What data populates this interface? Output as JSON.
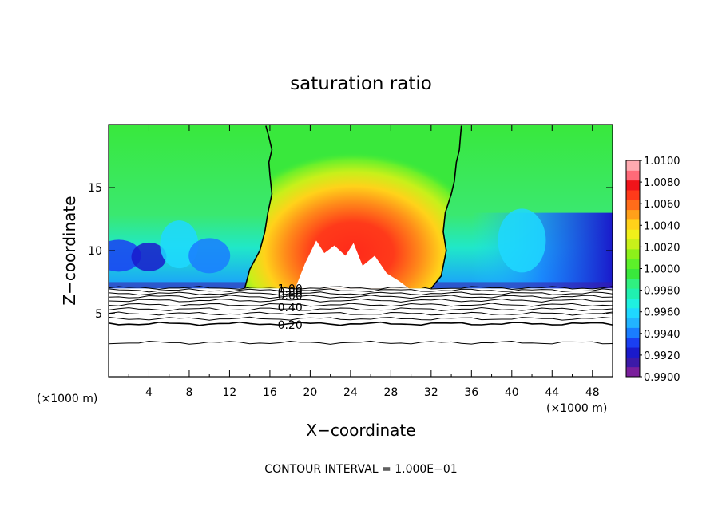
{
  "chart_data": {
    "type": "heatmap",
    "title": "saturation ratio",
    "xlabel": "X−coordinate",
    "ylabel": "Z−coordinate",
    "x_unit": "(×1000 m)",
    "x_unit_right": "(×1000 m)",
    "xlim": [
      0,
      50
    ],
    "ylim": [
      0,
      20
    ],
    "x_ticks": [
      "4",
      "8",
      "12",
      "16",
      "20",
      "24",
      "28",
      "32",
      "36",
      "40",
      "44",
      "48"
    ],
    "y_ticks": [
      "5",
      "10",
      "15"
    ],
    "colorbar": {
      "range": [
        0.99,
        1.01
      ],
      "ticks": [
        "0.9900",
        "0.9920",
        "0.9940",
        "0.9960",
        "0.9980",
        "1.0000",
        "1.0020",
        "1.0040",
        "1.0060",
        "1.0080",
        "1.0100"
      ],
      "colors": [
        "#7a1f9c",
        "#3c1aa8",
        "#1a1acb",
        "#1a3ff2",
        "#1a7dff",
        "#22b4ff",
        "#1fd8ff",
        "#1ff0e0",
        "#20f0b0",
        "#30f080",
        "#39e83c",
        "#5cf02a",
        "#8cf01a",
        "#c8f01a",
        "#f0f01a",
        "#ffd21a",
        "#ffa01a",
        "#ff6c1a",
        "#ff3a1a",
        "#f0141a",
        "#ff6a78",
        "#ffaab0"
      ]
    },
    "contour_interval_label": "CONTOUR INTERVAL = 1.000E−01",
    "contour_labels": [
      "1.00",
      "0.80",
      "0.60",
      "0.40",
      "0.20"
    ],
    "boundary_z": 7.0,
    "saturation_contour": {
      "left_x": [
        13.5,
        14,
        15,
        15.5,
        15.8,
        16.2,
        16.0,
        15.9,
        16.2,
        15.9,
        15.6
      ],
      "left_z": [
        7.0,
        8.5,
        10.0,
        11.5,
        13.0,
        14.5,
        16.0,
        17.0,
        18.0,
        19.0,
        19.9
      ],
      "right_x": [
        32.0,
        33.0,
        33.5,
        33.2,
        33.4,
        34.0,
        34.3,
        34.5,
        34.8,
        34.9,
        35.0
      ],
      "right_z": [
        7.0,
        8.0,
        10.0,
        11.5,
        13.0,
        14.5,
        15.5,
        17.0,
        18.0,
        19.0,
        19.9
      ]
    },
    "lower_contours_z": [
      7.05,
      6.85,
      6.6,
      6.35,
      6.05,
      5.7,
      5.35,
      5.0,
      4.6,
      4.2,
      2.7
    ]
  }
}
